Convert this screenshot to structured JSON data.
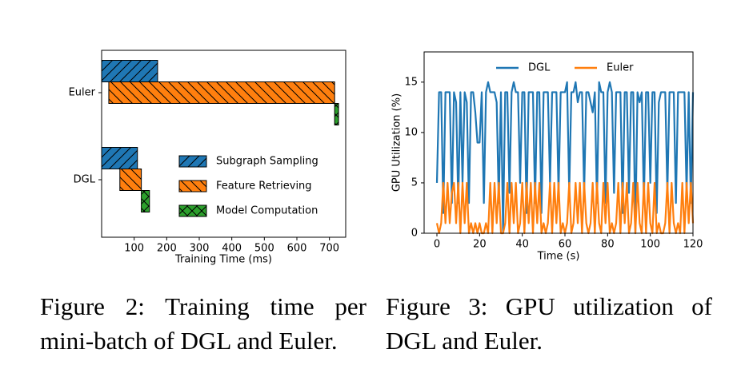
{
  "chart_data": [
    {
      "type": "gantt",
      "caption": "Figure 2: Training time per mini-batch of DGL and Euler.",
      "xlabel": "Training Time (ms)",
      "categories": [
        "Euler",
        "DGL"
      ],
      "xlim": [
        0,
        750
      ],
      "xticks": [
        100,
        200,
        300,
        400,
        500,
        600,
        700
      ],
      "legend": "lower right",
      "series": [
        {
          "name": "Subgraph Sampling",
          "color": "#1f77b4",
          "hatch": "/",
          "starts": [
            0,
            0
          ],
          "values": [
            172,
            110
          ]
        },
        {
          "name": "Feature Retrieving",
          "color": "#ff7f0e",
          "hatch": "\\",
          "starts": [
            22,
            56
          ],
          "values": [
            694,
            66
          ]
        },
        {
          "name": "Model Computation",
          "color": "#2ca02c",
          "hatch": "x",
          "starts": [
            716,
            122
          ],
          "values": [
            12,
            25
          ]
        }
      ]
    },
    {
      "type": "line",
      "caption": "Figure 3: GPU utilization of DGL and Euler.",
      "xlabel": "Time (s)",
      "ylabel": "GPU Utilization (%)",
      "xlim": [
        -6,
        120
      ],
      "ylim": [
        0,
        18
      ],
      "xticks": [
        0,
        20,
        40,
        60,
        80,
        100,
        120
      ],
      "yticks": [
        0,
        5,
        10,
        15
      ],
      "legend": "upper center",
      "x": [
        0,
        1,
        2,
        3,
        4,
        5,
        6,
        7,
        8,
        9,
        10,
        11,
        12,
        13,
        14,
        15,
        16,
        17,
        18,
        19,
        20,
        21,
        22,
        23,
        24,
        25,
        26,
        27,
        28,
        29,
        30,
        31,
        32,
        33,
        34,
        35,
        36,
        37,
        38,
        39,
        40,
        41,
        42,
        43,
        44,
        45,
        46,
        47,
        48,
        49,
        50,
        51,
        52,
        53,
        54,
        55,
        56,
        57,
        58,
        59,
        60,
        61,
        62,
        63,
        64,
        65,
        66,
        67,
        68,
        69,
        70,
        71,
        72,
        73,
        74,
        75,
        76,
        77,
        78,
        79,
        80,
        81,
        82,
        83,
        84,
        85,
        86,
        87,
        88,
        89,
        90,
        91,
        92,
        93,
        94,
        95,
        96,
        97,
        98,
        99,
        100,
        101,
        102,
        103,
        104,
        105,
        106,
        107,
        108,
        109,
        110,
        111,
        112,
        113,
        114,
        115,
        116,
        117,
        118,
        119,
        120
      ],
      "series": [
        {
          "name": "DGL",
          "color": "#1f77b4",
          "values": [
            5,
            14,
            14,
            2,
            14,
            14,
            14,
            3,
            14,
            13,
            3,
            14,
            5,
            14,
            13,
            3,
            14,
            14,
            12,
            9,
            9,
            14,
            3,
            14,
            15,
            14,
            14,
            14,
            13,
            3,
            14,
            0,
            14,
            14,
            4,
            14,
            15,
            14,
            14,
            5,
            14,
            14,
            2,
            14,
            14,
            14,
            3,
            14,
            14,
            2,
            14,
            14,
            14,
            5,
            14,
            14,
            14,
            4,
            14,
            14,
            14,
            15,
            4,
            14,
            14,
            15,
            13,
            14,
            14,
            4,
            14,
            14,
            13,
            12,
            14,
            3,
            15,
            14,
            14,
            3,
            14,
            15,
            14,
            4,
            14,
            14,
            14,
            2,
            14,
            14,
            4,
            14,
            14,
            0,
            14,
            13,
            14,
            3,
            14,
            14,
            5,
            14,
            14,
            2,
            13,
            14,
            14,
            14,
            4,
            14,
            14,
            14,
            3,
            14,
            14,
            14,
            14,
            4,
            14,
            3,
            14
          ]
        },
        {
          "name": "Euler",
          "color": "#ff7f0e",
          "values": [
            1,
            0,
            1,
            5,
            1,
            5,
            1,
            4,
            5,
            1,
            5,
            0,
            5,
            1,
            5,
            0,
            1,
            0,
            1,
            0,
            1,
            0,
            0,
            1,
            0,
            5,
            0,
            5,
            1,
            5,
            0,
            0,
            1,
            5,
            0,
            5,
            1,
            5,
            0,
            1,
            5,
            0,
            5,
            1,
            5,
            0,
            5,
            1,
            5,
            0,
            1,
            0,
            1,
            5,
            0,
            5,
            1,
            5,
            0,
            1,
            0,
            1,
            5,
            0,
            1,
            5,
            1,
            5,
            0,
            5,
            1,
            0,
            1,
            5,
            0,
            5,
            1,
            0,
            5,
            1,
            5,
            0,
            1,
            0,
            1,
            5,
            0,
            5,
            1,
            5,
            0,
            1,
            5,
            0,
            5,
            1,
            0,
            5,
            0,
            5,
            1,
            0,
            5,
            0,
            1,
            0,
            0,
            1,
            5,
            0,
            5,
            1,
            0,
            1,
            0,
            5,
            0,
            5,
            1,
            5,
            1
          ]
        }
      ]
    }
  ]
}
